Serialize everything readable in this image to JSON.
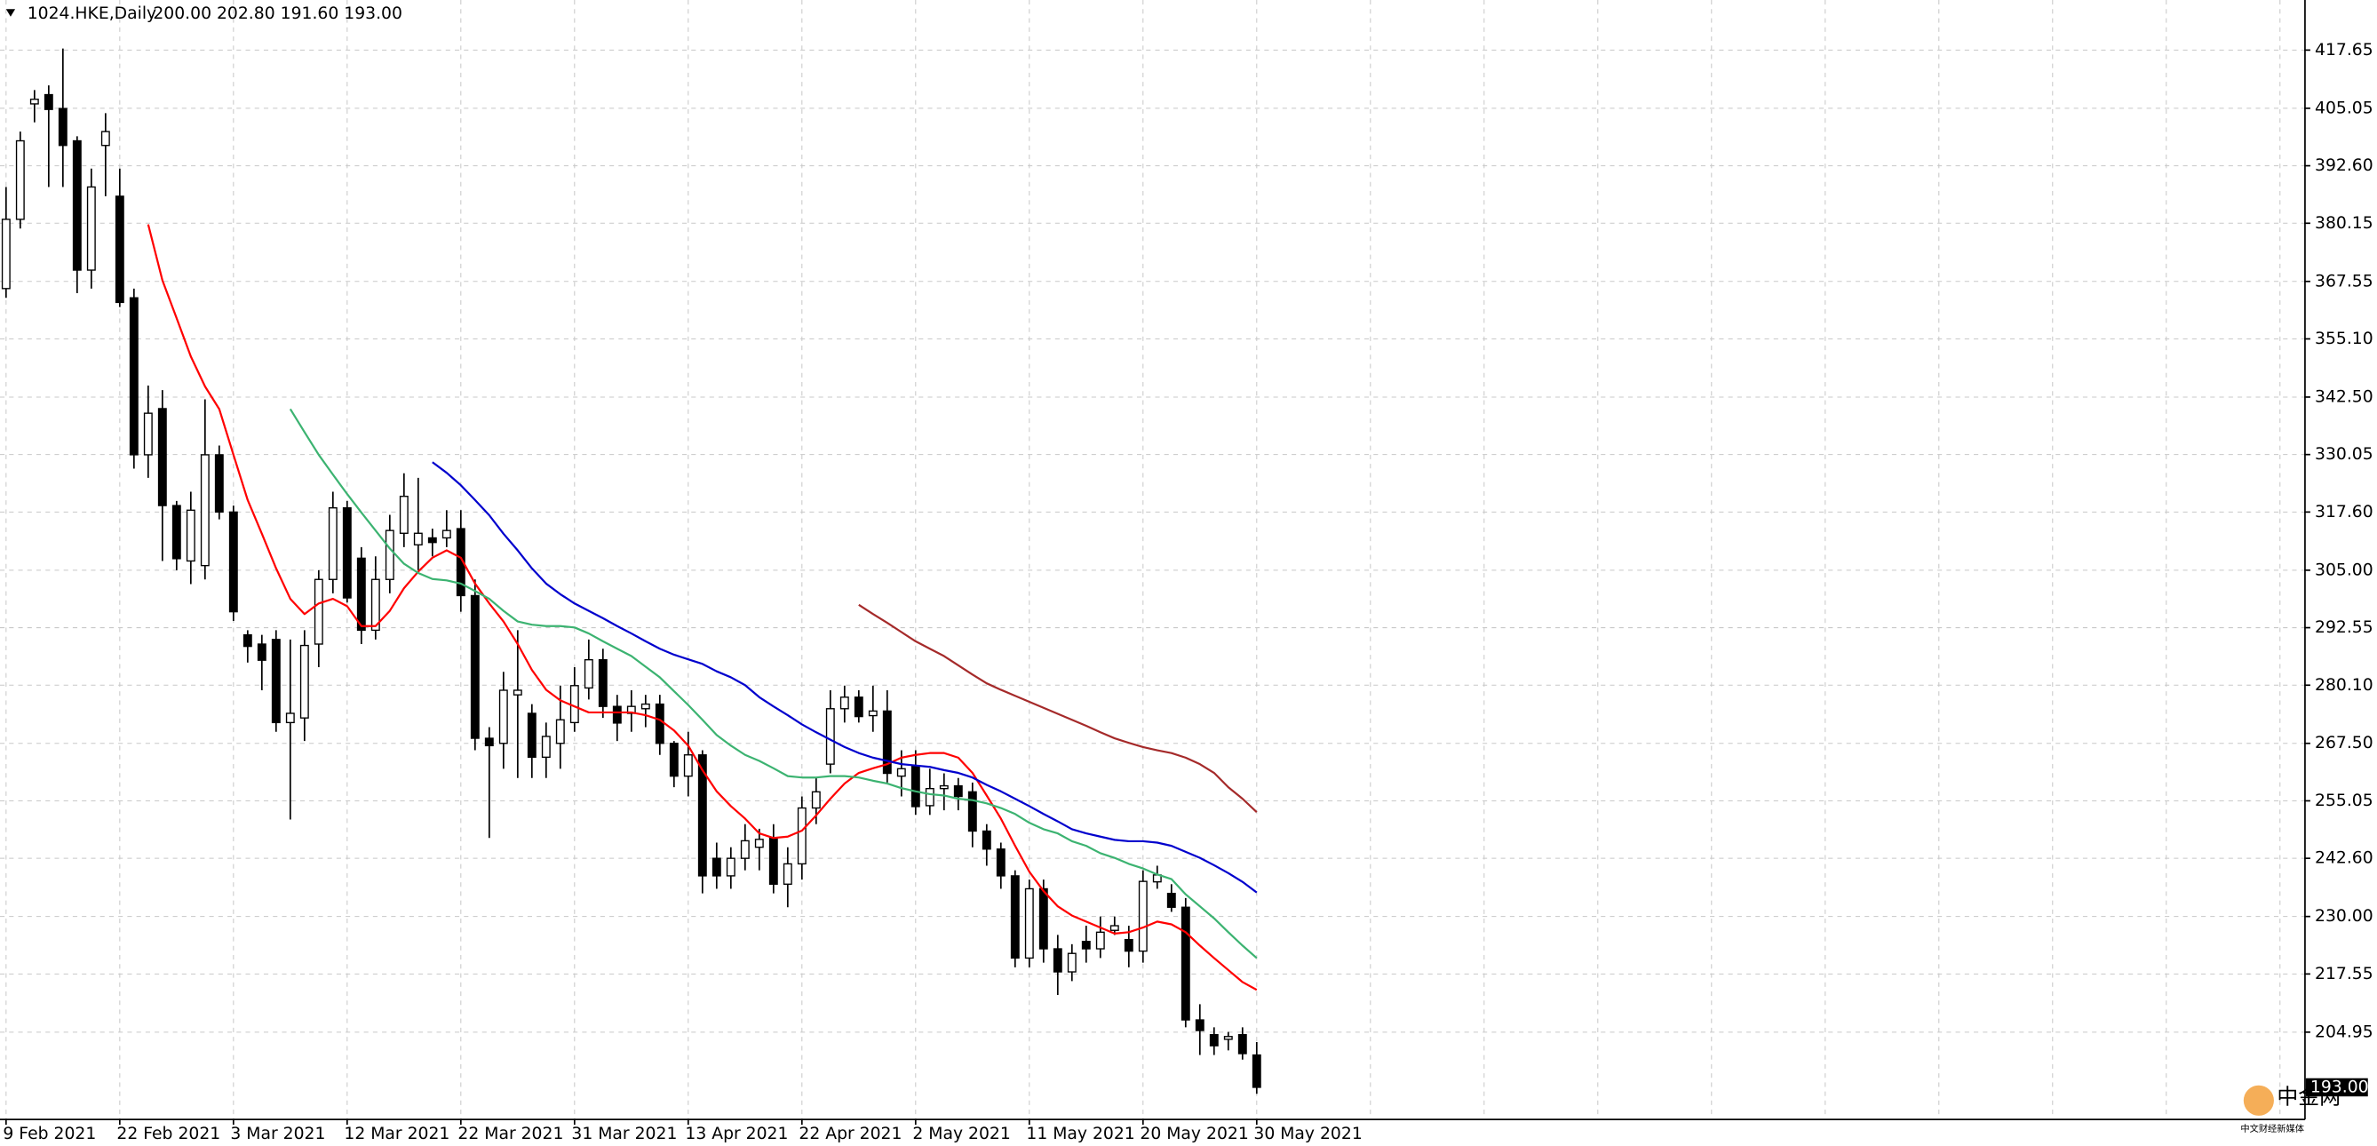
{
  "chart_data": {
    "type": "candlestick",
    "title": "1024.HKE,Daily",
    "header_ohlc": "200.00 202.80 191.60 193.00",
    "watermark": "中金网",
    "watermark_sub": "中文财经新媒体",
    "categories": [
      "9 Feb 2021",
      null,
      null,
      null,
      null,
      null,
      null,
      null,
      "22 Feb 2021",
      null,
      null,
      null,
      null,
      null,
      null,
      null,
      "3 Mar 2021",
      null,
      null,
      null,
      null,
      null,
      null,
      null,
      "12 Mar 2021",
      null,
      null,
      null,
      null,
      null,
      null,
      null,
      "22 Mar 2021",
      null,
      null,
      null,
      null,
      null,
      null,
      null,
      "31 Mar 2021",
      null,
      null,
      null,
      null,
      null,
      null,
      null,
      "13 Apr 2021",
      null,
      null,
      null,
      null,
      null,
      null,
      null,
      "22 Apr 2021",
      null,
      null,
      null,
      null,
      null,
      null,
      null,
      "2 May 2021",
      null,
      null,
      null,
      null,
      null,
      null,
      null,
      "11 May 2021",
      null,
      null,
      null,
      null,
      null,
      null,
      null,
      "20 May 2021",
      null,
      null,
      null,
      null,
      null,
      null,
      null,
      "30 May 2021"
    ],
    "open": [
      366,
      381,
      406,
      408,
      405,
      398,
      370,
      397,
      386,
      364,
      330,
      340,
      319,
      307,
      306,
      330,
      317.6,
      291,
      289,
      290,
      272,
      273,
      289,
      303,
      318.5,
      307.6,
      292,
      303,
      313,
      310.5,
      312,
      312,
      314,
      299.5,
      268.6,
      267.5,
      278,
      274,
      264.5,
      267.5,
      272,
      279.5,
      285.6,
      275.5,
      274,
      275,
      276,
      267.5,
      260.4,
      265,
      242.6,
      238.8,
      242.6,
      245,
      247,
      237,
      241.4,
      253.5,
      263,
      275,
      277.5,
      273.5,
      274.5,
      260.4,
      262.7,
      254,
      257.7,
      258.3,
      257,
      248.5,
      244.6,
      238.8,
      221,
      236,
      223,
      218,
      224.6,
      223,
      227,
      225,
      222.5,
      237.5,
      235,
      232,
      207.6,
      204.4,
      203.4,
      204.4,
      200
    ],
    "high": [
      388,
      400,
      409,
      410,
      418,
      399,
      392,
      404,
      392,
      366,
      345,
      344,
      320,
      322,
      342,
      332,
      319,
      292,
      291,
      292,
      290,
      292,
      305,
      322,
      320,
      310,
      308,
      317,
      326,
      325,
      314,
      318,
      318,
      303,
      271,
      283,
      292,
      276,
      272,
      280,
      284,
      290,
      288,
      278,
      279,
      278,
      278,
      268,
      270,
      266,
      246,
      245,
      250,
      249,
      250,
      245,
      256,
      260,
      279,
      280,
      279,
      280,
      279,
      266,
      266,
      262,
      261,
      260,
      259,
      250,
      246,
      240,
      238,
      238,
      226,
      224,
      228,
      230,
      230,
      228,
      240,
      241,
      237,
      234,
      211,
      206,
      205,
      206,
      202.8
    ],
    "low": [
      364,
      379,
      402,
      388,
      388,
      365,
      366,
      386,
      362,
      327,
      325,
      307,
      305,
      302,
      303,
      316,
      294,
      285,
      279,
      270,
      251,
      268,
      284,
      300,
      298,
      289,
      290,
      300,
      310,
      305,
      308,
      310,
      296,
      266,
      247,
      262,
      260,
      260,
      260,
      262,
      270,
      277,
      273,
      268,
      270,
      271,
      265,
      258,
      256,
      235,
      236,
      236,
      240,
      240,
      235,
      232,
      238,
      250,
      261,
      272,
      272,
      270,
      259,
      256,
      252,
      252,
      253,
      253,
      245,
      241,
      236,
      219,
      219,
      220,
      213,
      216,
      220,
      221,
      226,
      219,
      220,
      236,
      231,
      206,
      200,
      200,
      201,
      199,
      191.6
    ],
    "close": [
      381,
      398,
      407,
      404.8,
      397,
      370,
      388,
      400,
      363,
      330,
      339,
      319,
      307.5,
      318,
      330,
      317.6,
      296,
      288.5,
      285.5,
      272,
      274,
      288.7,
      303,
      318.5,
      299,
      292,
      303,
      313.6,
      321,
      313,
      311,
      313.6,
      299.5,
      268.6,
      267,
      279,
      279,
      264.5,
      269,
      272.6,
      280,
      285.6,
      275.5,
      271.9,
      275.5,
      276,
      267.5,
      260.4,
      265,
      238.8,
      238.8,
      242.6,
      246.4,
      246.7,
      237,
      241.4,
      253.5,
      257,
      275,
      277.5,
      273.3,
      274.5,
      261,
      262,
      253.8,
      257.7,
      258.3,
      256,
      248.5,
      244.6,
      238.8,
      221,
      236,
      223,
      218,
      222,
      223,
      226.6,
      228,
      222.5,
      237.6,
      239,
      232,
      207.6,
      205.3,
      202,
      204,
      200.3,
      193
    ],
    "up_color": "#ffffff",
    "down_color": "#000000",
    "lines": [
      {
        "color": "#ff0000",
        "values": [
          null,
          null,
          null,
          null,
          null,
          null,
          null,
          null,
          null,
          null,
          379.9,
          367.8,
          359.6,
          351.3,
          344.8,
          339.9,
          330.0,
          320.2,
          312.9,
          305.4,
          298.8,
          295.5,
          297.8,
          298.8,
          297.2,
          292.9,
          292.9,
          296.2,
          301.1,
          304.7,
          307.7,
          309.3,
          307.7,
          302.1,
          297.8,
          293.9,
          289.0,
          283.4,
          279.1,
          276.8,
          275.5,
          274.2,
          274.2,
          274.2,
          274.2,
          273.6,
          272.6,
          270.3,
          267.0,
          261.7,
          257.1,
          253.9,
          251.2,
          248.0,
          247.0,
          247.3,
          248.6,
          251.9,
          255.5,
          258.8,
          261.1,
          262.1,
          263.0,
          264.4,
          265.0,
          265.4,
          265.4,
          264.4,
          261.1,
          256.2,
          251.2,
          245.3,
          239.7,
          235.5,
          232.2,
          230.2,
          228.9,
          227.6,
          226.3,
          226.6,
          227.6,
          228.9,
          228.3,
          226.6,
          223.7,
          221.0,
          218.4,
          215.8,
          214.1
        ]
      },
      {
        "color": "#3cb371",
        "values": [
          null,
          null,
          null,
          null,
          null,
          null,
          null,
          null,
          null,
          null,
          null,
          null,
          null,
          null,
          null,
          null,
          null,
          null,
          null,
          null,
          339.9,
          334.9,
          330.0,
          325.7,
          321.5,
          317.5,
          313.6,
          309.7,
          306.4,
          304.4,
          303.1,
          302.8,
          302.1,
          300.5,
          298.8,
          296.2,
          293.9,
          293.2,
          292.9,
          292.9,
          292.6,
          291.3,
          289.6,
          288.0,
          286.4,
          284.1,
          281.8,
          278.8,
          275.8,
          272.6,
          269.3,
          267.0,
          265.0,
          263.7,
          262.1,
          260.4,
          260.1,
          260.1,
          260.4,
          260.4,
          260.1,
          259.4,
          258.8,
          257.8,
          257.1,
          256.5,
          256.2,
          255.5,
          255.2,
          254.5,
          253.5,
          252.2,
          250.3,
          248.9,
          248.0,
          246.3,
          245.3,
          243.7,
          242.7,
          241.4,
          240.4,
          239.1,
          238.1,
          234.8,
          232.2,
          229.6,
          226.6,
          223.7,
          221.0
        ]
      },
      {
        "color": "#0000cd",
        "values": [
          null,
          null,
          null,
          null,
          null,
          null,
          null,
          null,
          null,
          null,
          null,
          null,
          null,
          null,
          null,
          null,
          null,
          null,
          null,
          null,
          null,
          null,
          null,
          null,
          null,
          null,
          null,
          null,
          null,
          null,
          328.4,
          326.1,
          323.4,
          320.2,
          316.9,
          312.9,
          309.3,
          305.4,
          302.1,
          299.8,
          297.8,
          296.2,
          294.6,
          292.9,
          291.3,
          289.6,
          288.0,
          286.7,
          285.7,
          284.7,
          283.1,
          281.8,
          280.1,
          277.5,
          275.5,
          273.6,
          271.6,
          269.9,
          268.3,
          266.7,
          265.4,
          264.4,
          263.7,
          263.0,
          262.7,
          262.4,
          261.7,
          261.1,
          260.1,
          258.5,
          257.1,
          255.5,
          253.9,
          252.2,
          250.6,
          248.9,
          248.0,
          247.3,
          246.6,
          246.3,
          246.3,
          246.0,
          245.3,
          244.0,
          242.7,
          241.1,
          239.4,
          237.5,
          235.2
        ]
      },
      {
        "color": "#a52a2a",
        "values": [
          null,
          null,
          null,
          null,
          null,
          null,
          null,
          null,
          null,
          null,
          null,
          null,
          null,
          null,
          null,
          null,
          null,
          null,
          null,
          null,
          null,
          null,
          null,
          null,
          null,
          null,
          null,
          null,
          null,
          null,
          null,
          null,
          null,
          null,
          null,
          null,
          null,
          null,
          null,
          null,
          null,
          null,
          null,
          null,
          null,
          null,
          null,
          null,
          null,
          null,
          null,
          null,
          null,
          null,
          null,
          null,
          null,
          null,
          null,
          null,
          297.5,
          295.5,
          293.6,
          291.6,
          289.6,
          288.0,
          286.4,
          284.4,
          282.4,
          280.5,
          279.1,
          277.8,
          276.5,
          275.2,
          273.9,
          272.6,
          271.3,
          269.9,
          268.6,
          267.6,
          266.7,
          266.0,
          265.4,
          264.4,
          263.0,
          261.1,
          258.0,
          255.5,
          252.6
        ]
      }
    ],
    "ylim": [
      186.2,
      428.5
    ],
    "yticks": [
      417.65,
      405.05,
      {
        "value": 392.6,
        "label": "392.60"
      },
      380.15,
      367.55,
      {
        "value": 355.1,
        "label": "355.10"
      },
      {
        "value": 342.5,
        "label": "342.50"
      },
      330.05,
      {
        "value": 317.6,
        "label": "317.60"
      },
      {
        "value": 305,
        "label": "305.00"
      },
      292.55,
      {
        "value": 280.1,
        "label": "280.10"
      },
      {
        "value": 267.5,
        "label": "267.50"
      },
      255.05,
      {
        "value": 242.6,
        "label": "242.60"
      },
      {
        "value": 230,
        "label": "230.00"
      },
      217.55,
      204.95
    ],
    "last_price": {
      "value": 193,
      "label": "193.00"
    },
    "grid": true
  }
}
